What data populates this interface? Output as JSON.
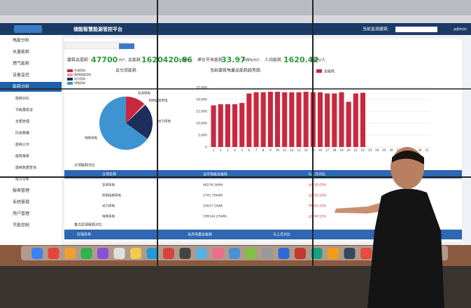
{
  "header": {
    "title": "储能智慧能源管控平台",
    "building_label": "当前监测建筑:",
    "user": "admin"
  },
  "sidebar": [
    "电能分析",
    "水量能耗",
    "燃气能耗",
    "设备监控",
    "能耗分析",
    "能耗对比",
    "节能量验证",
    "定额管理",
    "历史数据",
    "能耗公示",
    "能耗报表",
    "能耗数据查询",
    "统计分析",
    "报表管理",
    "系统管理",
    "用户管理",
    "节能控制"
  ],
  "stats": {
    "area_label": "建筑总面积",
    "area": "47700",
    "area_unit": "m²,",
    "total_label": "总能耗",
    "total": "1620420.86",
    "total_unit": "kWh,",
    "unit_label": "单位平米能耗",
    "unit": "33.97",
    "unit_unit": "kWh/m²,",
    "person_label": "人均能耗",
    "person": "1620.42",
    "person_unit": "kWh/人"
  },
  "pie_chart": {
    "type": "pie",
    "title": "总分项能耗",
    "categories": [
      "空调用电",
      "照明插座用电",
      "动力用电",
      "特殊用电"
    ],
    "values": [
      12,
      1,
      22,
      65
    ],
    "colors": [
      "#c9283e",
      "#e8a0a8",
      "#1f2d5c",
      "#3d94d0"
    ]
  },
  "chart_data": {
    "type": "bar",
    "title": "当前建筑电量总能耗趋势图",
    "series": [
      {
        "name": "总能耗",
        "color": "#c9283e",
        "values": [
          17500,
          18000,
          18000,
          18000,
          18500,
          22500,
          23000,
          23000,
          23200,
          23200,
          23000,
          23000,
          23000,
          23200,
          23000,
          23000,
          22500,
          22500,
          23000,
          19000,
          22500,
          22800,
          null,
          null,
          null,
          null,
          null,
          null,
          null,
          null,
          null
        ]
      }
    ],
    "categories": [
      "1",
      "2",
      "3",
      "4",
      "5",
      "6",
      "7",
      "8",
      "9",
      "10",
      "11",
      "12",
      "13",
      "14",
      "15",
      "16",
      "17",
      "18",
      "19",
      "20",
      "21",
      "22",
      "23",
      "24",
      "25",
      "26",
      "27",
      "28",
      "29",
      "30",
      "31"
    ],
    "ylim": [
      0,
      25000
    ],
    "yticks": [
      0,
      {
        "value": 5000,
        "label": "5,000"
      },
      {
        "value": 10000,
        "label": "10,000"
      },
      {
        "value": 15000,
        "label": "15,000"
      },
      {
        "value": 20000,
        "label": "20,000"
      },
      {
        "value": 25000,
        "label": "25,000"
      }
    ],
    "grid": true
  },
  "table": {
    "title": "分项能耗对比",
    "columns": [
      "分项名称",
      "当月电能总能耗",
      "与上月对比"
    ],
    "rows": [
      [
        "空调用电",
        "48276.3kWh",
        "上升33.03%"
      ],
      [
        "照明插座用电",
        "2741.79kWh",
        "上升25.52%"
      ],
      [
        "动力用电",
        "25017.1kWh",
        "下降25.43%"
      ],
      [
        "特殊用电",
        "199144.27kWh",
        "上升94.11%"
      ]
    ]
  },
  "table2": {
    "title": "重点区域能耗对比",
    "columns": [
      "区域名称",
      "当月电量总能耗",
      "与上月对比"
    ]
  }
}
